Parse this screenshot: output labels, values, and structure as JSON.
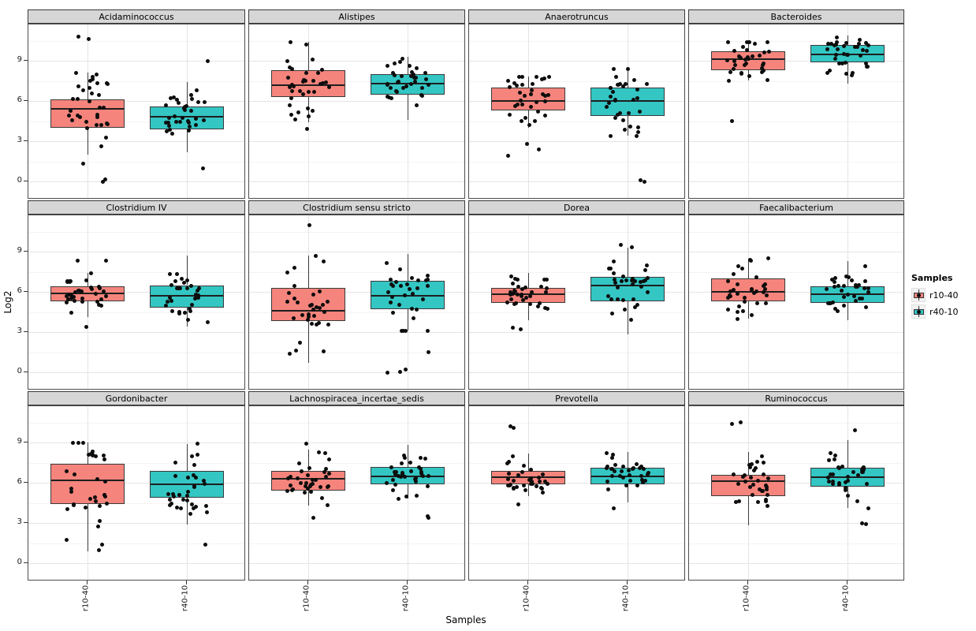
{
  "figure": {
    "ylabel": "Log2",
    "xlabel": "Samples",
    "x_categories": [
      "r10-40",
      "r40-10"
    ],
    "y_ticks": [
      0,
      3,
      6,
      9
    ]
  },
  "legend": {
    "title": "Samples",
    "items": [
      {
        "label": "r10-40",
        "color": "#F5847C"
      },
      {
        "label": "r40-10",
        "color": "#33C6C3"
      }
    ]
  },
  "colors": {
    "strip_background": "#d6d6d6",
    "panel_border": "#4d4d4d",
    "major_grid": "#e4e4e4",
    "minor_grid": "#f3f3f3",
    "point": "#0d0d0d",
    "box_fill_r10_40": "#F5847C",
    "box_fill_r40_10": "#33C6C3"
  },
  "chart_data": {
    "type": "boxplot-jitter",
    "title": "",
    "xlabel": "Samples",
    "ylabel": "Log2",
    "ylim": [
      -1.2,
      11.6
    ],
    "y_major_gridlines": [
      0,
      3,
      6,
      9
    ],
    "y_minor_gridlines": [
      1.5,
      4.5,
      7.5,
      10.5
    ],
    "facet_layout": {
      "rows": 3,
      "cols": 4
    },
    "facets": [
      {
        "title": "Acidaminococcus",
        "groups": [
          {
            "sample": "r10-40",
            "whisker_low": 2.0,
            "q1": 4.0,
            "median": 5.4,
            "q3": 6.1,
            "whisker_high": 8.1,
            "outliers": [
              10.8,
              10.6,
              1.3,
              0.15,
              0.0
            ],
            "n_points": 33
          },
          {
            "sample": "r40-10",
            "whisker_low": 2.2,
            "q1": 3.9,
            "median": 4.8,
            "q3": 5.6,
            "whisker_high": 7.4,
            "outliers": [
              9.0,
              1.0
            ],
            "n_points": 33
          }
        ]
      },
      {
        "title": "Alistipes",
        "groups": [
          {
            "sample": "r10-40",
            "whisker_low": 4.4,
            "q1": 6.3,
            "median": 7.2,
            "q3": 8.3,
            "whisker_high": 10.4,
            "outliers": [
              3.9
            ],
            "n_points": 35
          },
          {
            "sample": "r40-10",
            "whisker_low": 4.6,
            "q1": 6.5,
            "median": 7.3,
            "q3": 8.0,
            "whisker_high": 9.3,
            "outliers": [],
            "n_points": 35
          }
        ]
      },
      {
        "title": "Anaerotruncus",
        "groups": [
          {
            "sample": "r10-40",
            "whisker_low": 4.0,
            "q1": 5.3,
            "median": 6.0,
            "q3": 7.0,
            "whisker_high": 7.8,
            "outliers": [
              2.8,
              2.4,
              1.9
            ],
            "n_points": 33
          },
          {
            "sample": "r40-10",
            "whisker_low": 3.4,
            "q1": 4.9,
            "median": 6.0,
            "q3": 7.0,
            "whisker_high": 8.4,
            "outliers": [
              0.1,
              0.0
            ],
            "n_points": 33
          }
        ]
      },
      {
        "title": "Bacteroides",
        "groups": [
          {
            "sample": "r10-40",
            "whisker_low": 7.5,
            "q1": 8.3,
            "median": 9.1,
            "q3": 9.7,
            "whisker_high": 10.4,
            "outliers": [
              4.5
            ],
            "n_points": 35
          },
          {
            "sample": "r40-10",
            "whisker_low": 7.3,
            "q1": 8.9,
            "median": 9.5,
            "q3": 10.2,
            "whisker_high": 10.9,
            "outliers": [],
            "n_points": 35
          }
        ]
      },
      {
        "title": "Clostridium IV",
        "groups": [
          {
            "sample": "r10-40",
            "whisker_low": 4.1,
            "q1": 5.3,
            "median": 5.9,
            "q3": 6.4,
            "whisker_high": 7.4,
            "outliers": [
              8.3,
              8.3,
              3.4
            ],
            "n_points": 33
          },
          {
            "sample": "r40-10",
            "whisker_low": 3.4,
            "q1": 4.8,
            "median": 5.7,
            "q3": 6.5,
            "whisker_high": 8.7,
            "outliers": [],
            "n_points": 33
          }
        ]
      },
      {
        "title": "Clostridium sensu stricto",
        "groups": [
          {
            "sample": "r10-40",
            "whisker_low": 0.7,
            "q1": 3.8,
            "median": 4.6,
            "q3": 6.3,
            "whisker_high": 8.7,
            "outliers": [
              11.0
            ],
            "n_points": 33
          },
          {
            "sample": "r40-10",
            "whisker_low": 3.1,
            "q1": 4.7,
            "median": 5.7,
            "q3": 6.8,
            "whisker_high": 8.8,
            "outliers": [
              1.5,
              0.2,
              0.05,
              0.0
            ],
            "n_points": 31
          }
        ]
      },
      {
        "title": "Dorea",
        "groups": [
          {
            "sample": "r10-40",
            "whisker_low": 3.9,
            "q1": 5.2,
            "median": 5.8,
            "q3": 6.3,
            "whisker_high": 7.4,
            "outliers": [
              3.3,
              3.2
            ],
            "n_points": 33
          },
          {
            "sample": "r40-10",
            "whisker_low": 2.8,
            "q1": 5.3,
            "median": 6.5,
            "q3": 7.1,
            "whisker_high": 9.3,
            "outliers": [
              9.5
            ],
            "n_points": 33
          }
        ]
      },
      {
        "title": "Faecalibacterium",
        "groups": [
          {
            "sample": "r10-40",
            "whisker_low": 4.0,
            "q1": 5.3,
            "median": 6.0,
            "q3": 7.0,
            "whisker_high": 8.5,
            "outliers": [],
            "n_points": 34
          },
          {
            "sample": "r40-10",
            "whisker_low": 3.9,
            "q1": 5.2,
            "median": 5.8,
            "q3": 6.4,
            "whisker_high": 8.3,
            "outliers": [],
            "n_points": 34
          }
        ]
      },
      {
        "title": "Gordonibacter",
        "groups": [
          {
            "sample": "r10-40",
            "whisker_low": 0.9,
            "q1": 4.4,
            "median": 6.2,
            "q3": 7.4,
            "whisker_high": 9.0,
            "outliers": [],
            "n_points": 34
          },
          {
            "sample": "r40-10",
            "whisker_low": 2.9,
            "q1": 4.9,
            "median": 5.9,
            "q3": 6.9,
            "whisker_high": 8.9,
            "outliers": [
              1.4
            ],
            "n_points": 33
          }
        ]
      },
      {
        "title": "Lachnospiracea_incertae_sedis",
        "groups": [
          {
            "sample": "r10-40",
            "whisker_low": 4.3,
            "q1": 5.4,
            "median": 6.3,
            "q3": 6.9,
            "whisker_high": 8.5,
            "outliers": [
              8.9,
              3.4
            ],
            "n_points": 34
          },
          {
            "sample": "r40-10",
            "whisker_low": 4.8,
            "q1": 5.9,
            "median": 6.5,
            "q3": 7.2,
            "whisker_high": 8.8,
            "outliers": [
              3.5,
              3.4
            ],
            "n_points": 34
          }
        ]
      },
      {
        "title": "Prevotella",
        "groups": [
          {
            "sample": "r10-40",
            "whisker_low": 5.0,
            "q1": 5.9,
            "median": 6.4,
            "q3": 6.9,
            "whisker_high": 8.2,
            "outliers": [
              10.2,
              10.1,
              4.4
            ],
            "n_points": 32
          },
          {
            "sample": "r40-10",
            "whisker_low": 4.5,
            "q1": 5.9,
            "median": 6.5,
            "q3": 7.1,
            "whisker_high": 8.3,
            "outliers": [
              4.1
            ],
            "n_points": 33
          }
        ]
      },
      {
        "title": "Ruminococcus",
        "groups": [
          {
            "sample": "r10-40",
            "whisker_low": 2.8,
            "q1": 5.0,
            "median": 6.1,
            "q3": 6.6,
            "whisker_high": 8.3,
            "outliers": [
              10.5,
              10.4
            ],
            "n_points": 33
          },
          {
            "sample": "r40-10",
            "whisker_low": 4.1,
            "q1": 5.7,
            "median": 6.4,
            "q3": 7.1,
            "whisker_high": 9.2,
            "outliers": [
              9.9,
              3.0,
              2.9
            ],
            "n_points": 33
          }
        ]
      }
    ]
  }
}
